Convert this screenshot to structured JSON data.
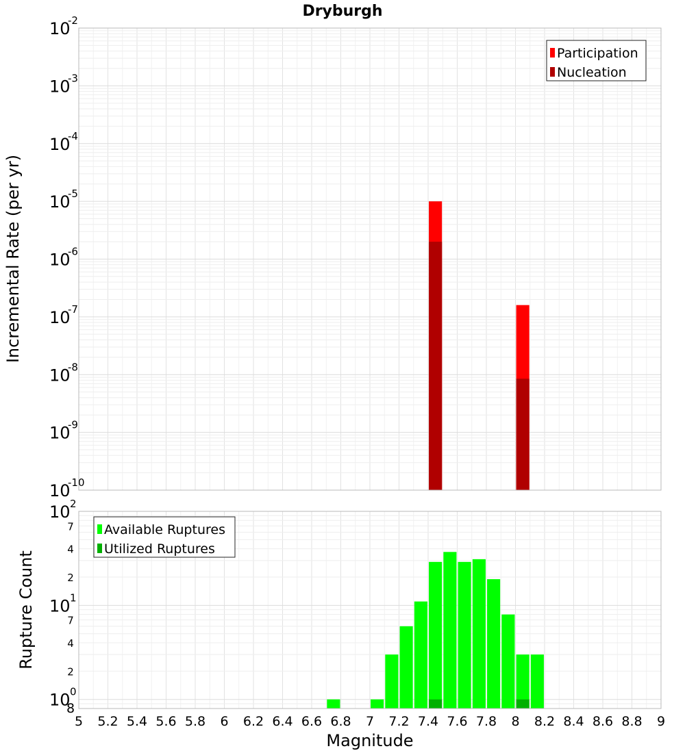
{
  "chart_data": [
    {
      "type": "bar",
      "title": "Dryburgh",
      "ylabel": "Incremental Rate (per yr)",
      "yscale": "log",
      "ylim": [
        1e-10,
        0.01
      ],
      "xlim": [
        5,
        9
      ],
      "grid": true,
      "legend_placement": "top-right",
      "y_ticks": [
        {
          "base": "10",
          "exp": "-2"
        },
        {
          "base": "10",
          "exp": "-3"
        },
        {
          "base": "10",
          "exp": "-4"
        },
        {
          "base": "10",
          "exp": "-5"
        },
        {
          "base": "10",
          "exp": "-6"
        },
        {
          "base": "10",
          "exp": "-7"
        },
        {
          "base": "10",
          "exp": "-8"
        },
        {
          "base": "10",
          "exp": "-9"
        },
        {
          "base": "10",
          "exp": "-10"
        }
      ],
      "bar_width": 0.09,
      "series": [
        {
          "name": "Participation",
          "color": "#ff0000",
          "x": [
            7.45,
            8.05
          ],
          "values": [
            1e-05,
            1.6e-07
          ]
        },
        {
          "name": "Nucleation",
          "color": "#b00000",
          "x": [
            7.45,
            8.05
          ],
          "values": [
            2e-06,
            8.5e-09
          ]
        }
      ]
    },
    {
      "type": "bar",
      "xlabel": "Magnitude",
      "ylabel": "Rupture Count",
      "yscale": "log",
      "ylim": [
        0.8,
        100
      ],
      "xlim": [
        5,
        9
      ],
      "grid": true,
      "legend_placement": "top-left",
      "x_ticks": [
        "5",
        "5.2",
        "5.4",
        "5.6",
        "5.8",
        "6",
        "6.2",
        "6.4",
        "6.6",
        "6.8",
        "7",
        "7.2",
        "7.4",
        "7.6",
        "7.8",
        "8",
        "8.2",
        "8.4",
        "8.6",
        "8.8",
        "9"
      ],
      "y_major_ticks": [
        {
          "base": "10",
          "exp": "2"
        },
        {
          "base": "10",
          "exp": "1"
        },
        {
          "base": "10",
          "exp": "0"
        }
      ],
      "y_minor_ticks": [
        "7",
        "4",
        "2",
        "7",
        "4",
        "2",
        "8"
      ],
      "bar_width": 0.09,
      "series": [
        {
          "name": "Available Ruptures",
          "color": "#00ff00",
          "x": [
            6.75,
            7.05,
            7.15,
            7.25,
            7.35,
            7.45,
            7.55,
            7.65,
            7.75,
            7.85,
            7.95,
            8.05,
            8.15
          ],
          "values": [
            1,
            1,
            3,
            6,
            11,
            29,
            37,
            29,
            31,
            19,
            8,
            3,
            3
          ]
        },
        {
          "name": "Utilized Ruptures",
          "color": "#00b000",
          "x": [
            7.45,
            8.05
          ],
          "values": [
            1,
            1
          ]
        }
      ]
    }
  ]
}
